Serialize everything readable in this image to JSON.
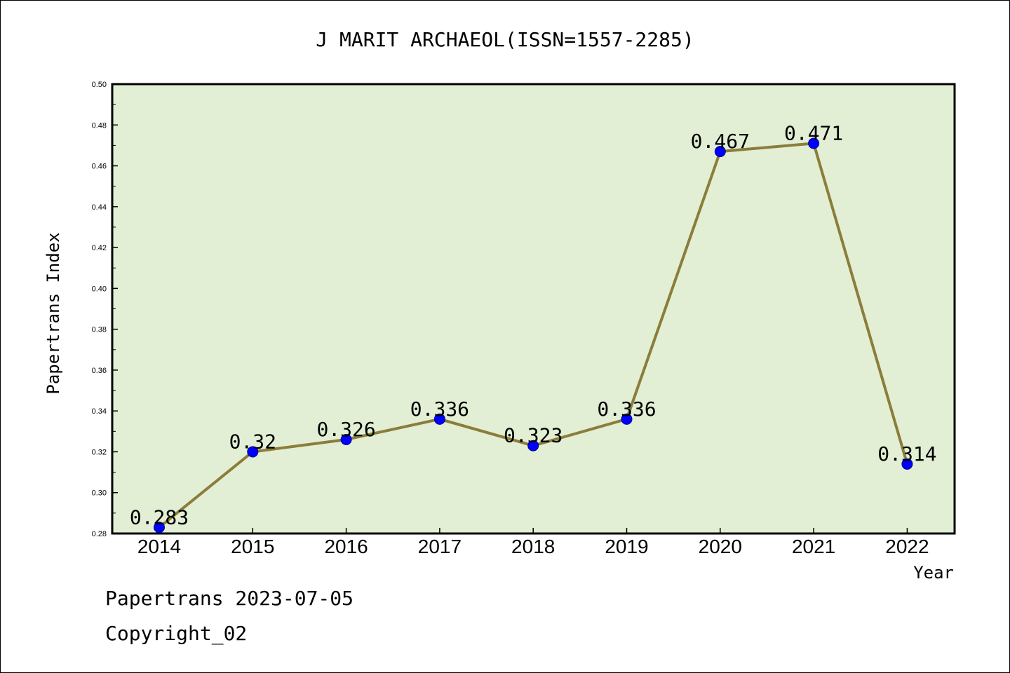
{
  "chart_data": {
    "type": "line",
    "title": "J MARIT ARCHAEOL(ISSN=1557-2285)",
    "xlabel": "Year",
    "ylabel": "Papertrans Index",
    "categories": [
      "2014",
      "2015",
      "2016",
      "2017",
      "2018",
      "2019",
      "2020",
      "2021",
      "2022"
    ],
    "values": [
      0.283,
      0.32,
      0.326,
      0.336,
      0.323,
      0.336,
      0.467,
      0.471,
      0.314
    ],
    "data_labels": [
      "0.283",
      "0.32",
      "0.326",
      "0.336",
      "0.323",
      "0.336",
      "0.467",
      "0.471",
      "0.314"
    ],
    "ylim": [
      0.28,
      0.5
    ],
    "yticks": [
      "0.28",
      "0.30",
      "0.32",
      "0.34",
      "0.36",
      "0.38",
      "0.40",
      "0.42",
      "0.44",
      "0.46",
      "0.48",
      "0.50"
    ],
    "grid": false,
    "plot_background": "#e2efd5",
    "line_color": "#8b7d3a",
    "marker_color": "#0000ff"
  },
  "footer": {
    "line1": "Papertrans 2023-07-05",
    "line2": "Copyright_02"
  }
}
